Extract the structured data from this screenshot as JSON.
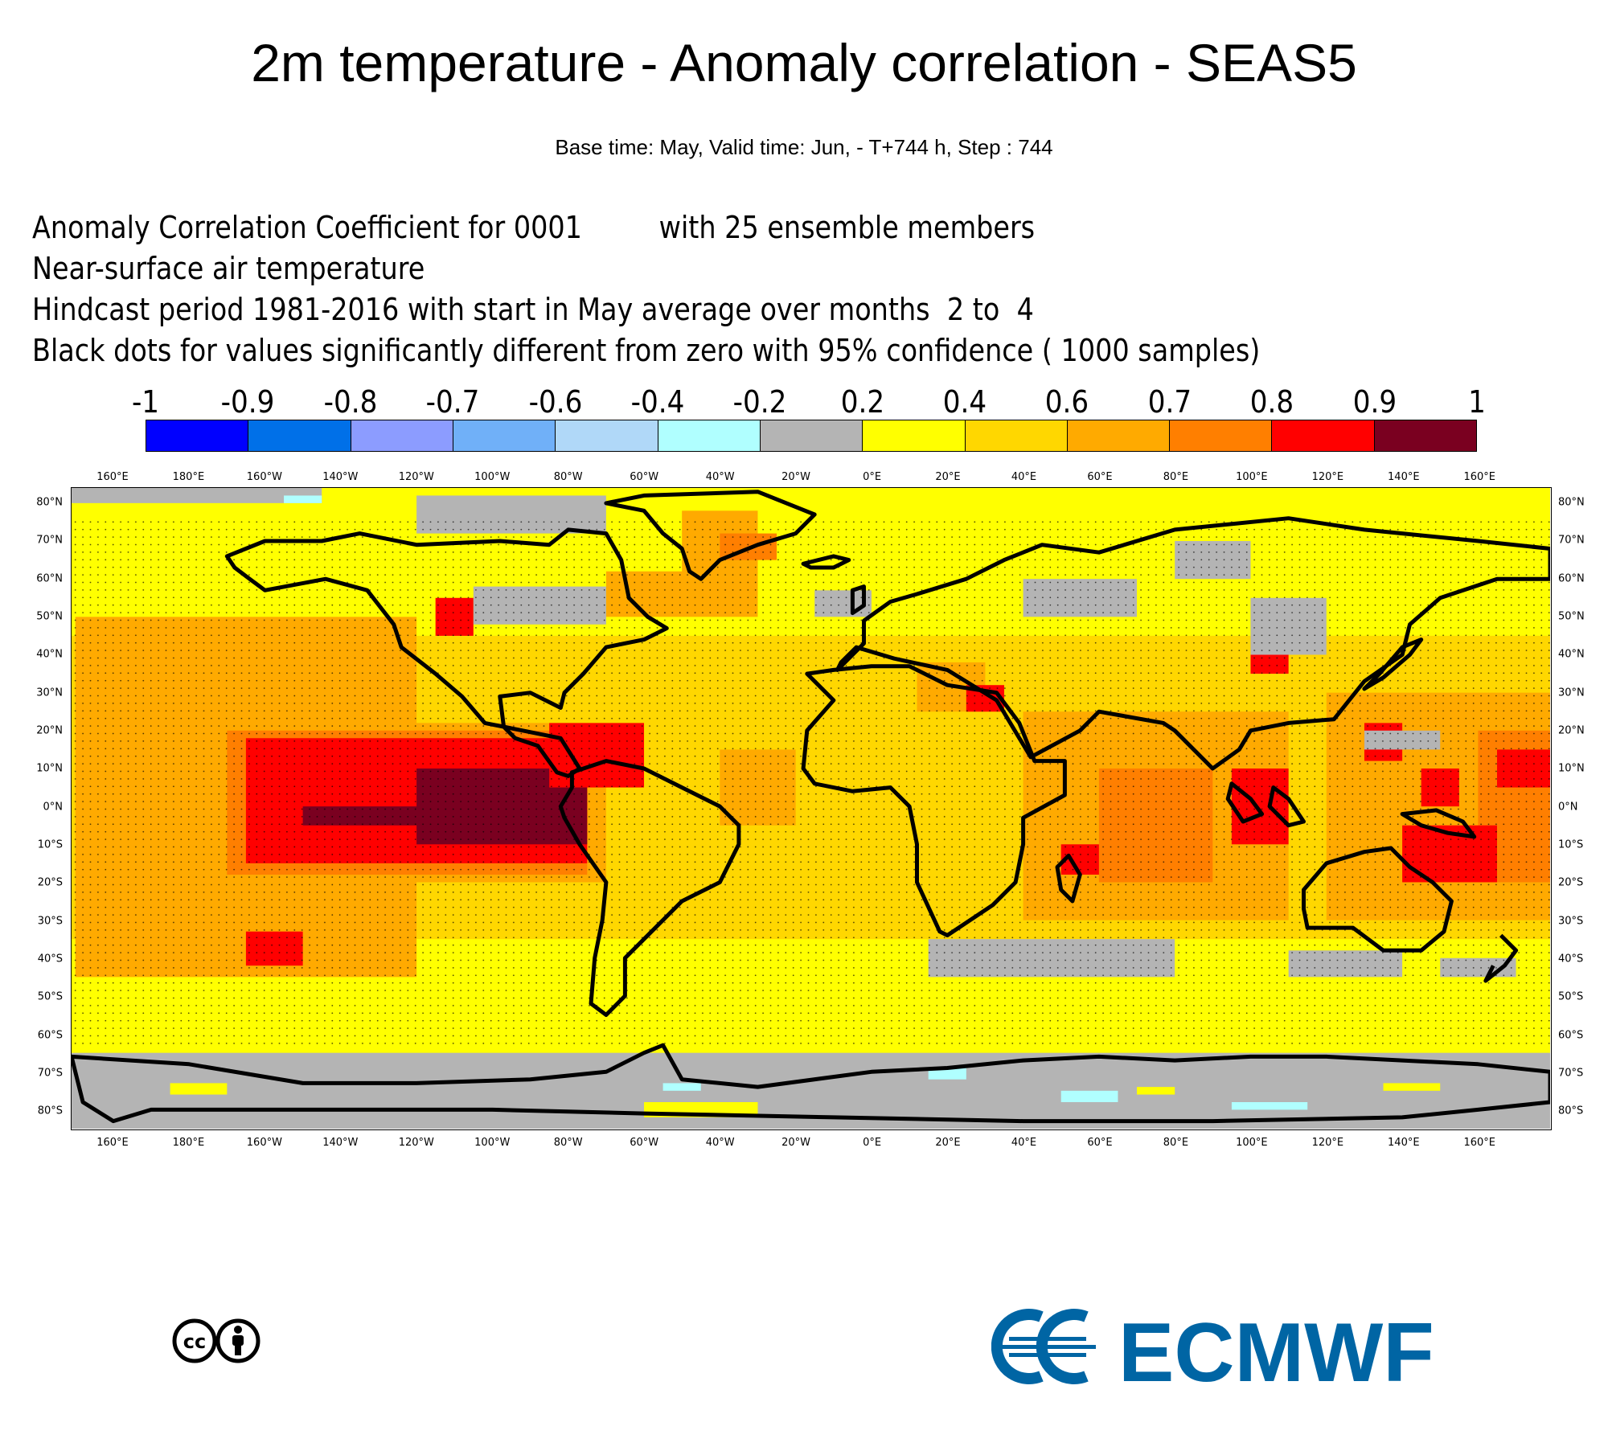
{
  "title": "2m temperature - Anomaly correlation - SEAS5",
  "subtitle": "Base time: May, Valid time: Jun, - T+744 h, Step : 744",
  "description": [
    "Anomaly Correlation Coefficient for 0001         with 25 ensemble members",
    "Near-surface air temperature",
    "Hindcast period 1981-2016 with start in May average over months  2 to  4",
    "Black dots for values significantly different from zero with 95% confidence ( 1000 samples)"
  ],
  "legend": {
    "labels": [
      "-1",
      "-0.9",
      "-0.8",
      "-0.7",
      "-0.6",
      "-0.4",
      "-0.2",
      "0.2",
      "0.4",
      "0.6",
      "0.7",
      "0.8",
      "0.9",
      "1"
    ],
    "colors": [
      "#0000ff",
      "#0070e8",
      "#8c9cff",
      "#70b0f8",
      "#b0d8f8",
      "#b0ffff",
      "#b4b4b4",
      "#ffff00",
      "#ffd700",
      "#ffaa00",
      "#ff7f00",
      "#ff0000",
      "#7a0020"
    ]
  },
  "axes": {
    "lon_labels": [
      "160°E",
      "180°E",
      "160°W",
      "140°W",
      "120°W",
      "100°W",
      "80°W",
      "60°W",
      "40°W",
      "20°W",
      "0°E",
      "20°E",
      "40°E",
      "60°E",
      "80°E",
      "100°E",
      "120°E",
      "140°E",
      "160°E"
    ],
    "lat_labels": [
      "80°N",
      "70°N",
      "60°N",
      "50°N",
      "40°N",
      "30°N",
      "20°N",
      "10°N",
      "0°N",
      "10°S",
      "20°S",
      "30°S",
      "40°S",
      "50°S",
      "60°S",
      "70°S",
      "80°S"
    ]
  },
  "map": {
    "projection": "cylindrical",
    "lon_range": [
      149,
      539
    ],
    "lat_range": [
      -85,
      84
    ],
    "coastline_color": "#000000",
    "significance_marker": "black dots",
    "field_colors": {
      "grey": "#b4b4b4",
      "cyan": "#b0ffff",
      "yellow": "#ffff00",
      "gold": "#ffd700",
      "orange": "#ffaa00",
      "dark_orange": "#ff7f00",
      "red": "#ff0000",
      "maroon": "#7a0020"
    }
  },
  "logos": {
    "cc_text": "cc",
    "ecmwf_text": "ECMWF",
    "ecmwf_color": "#0065a4"
  }
}
